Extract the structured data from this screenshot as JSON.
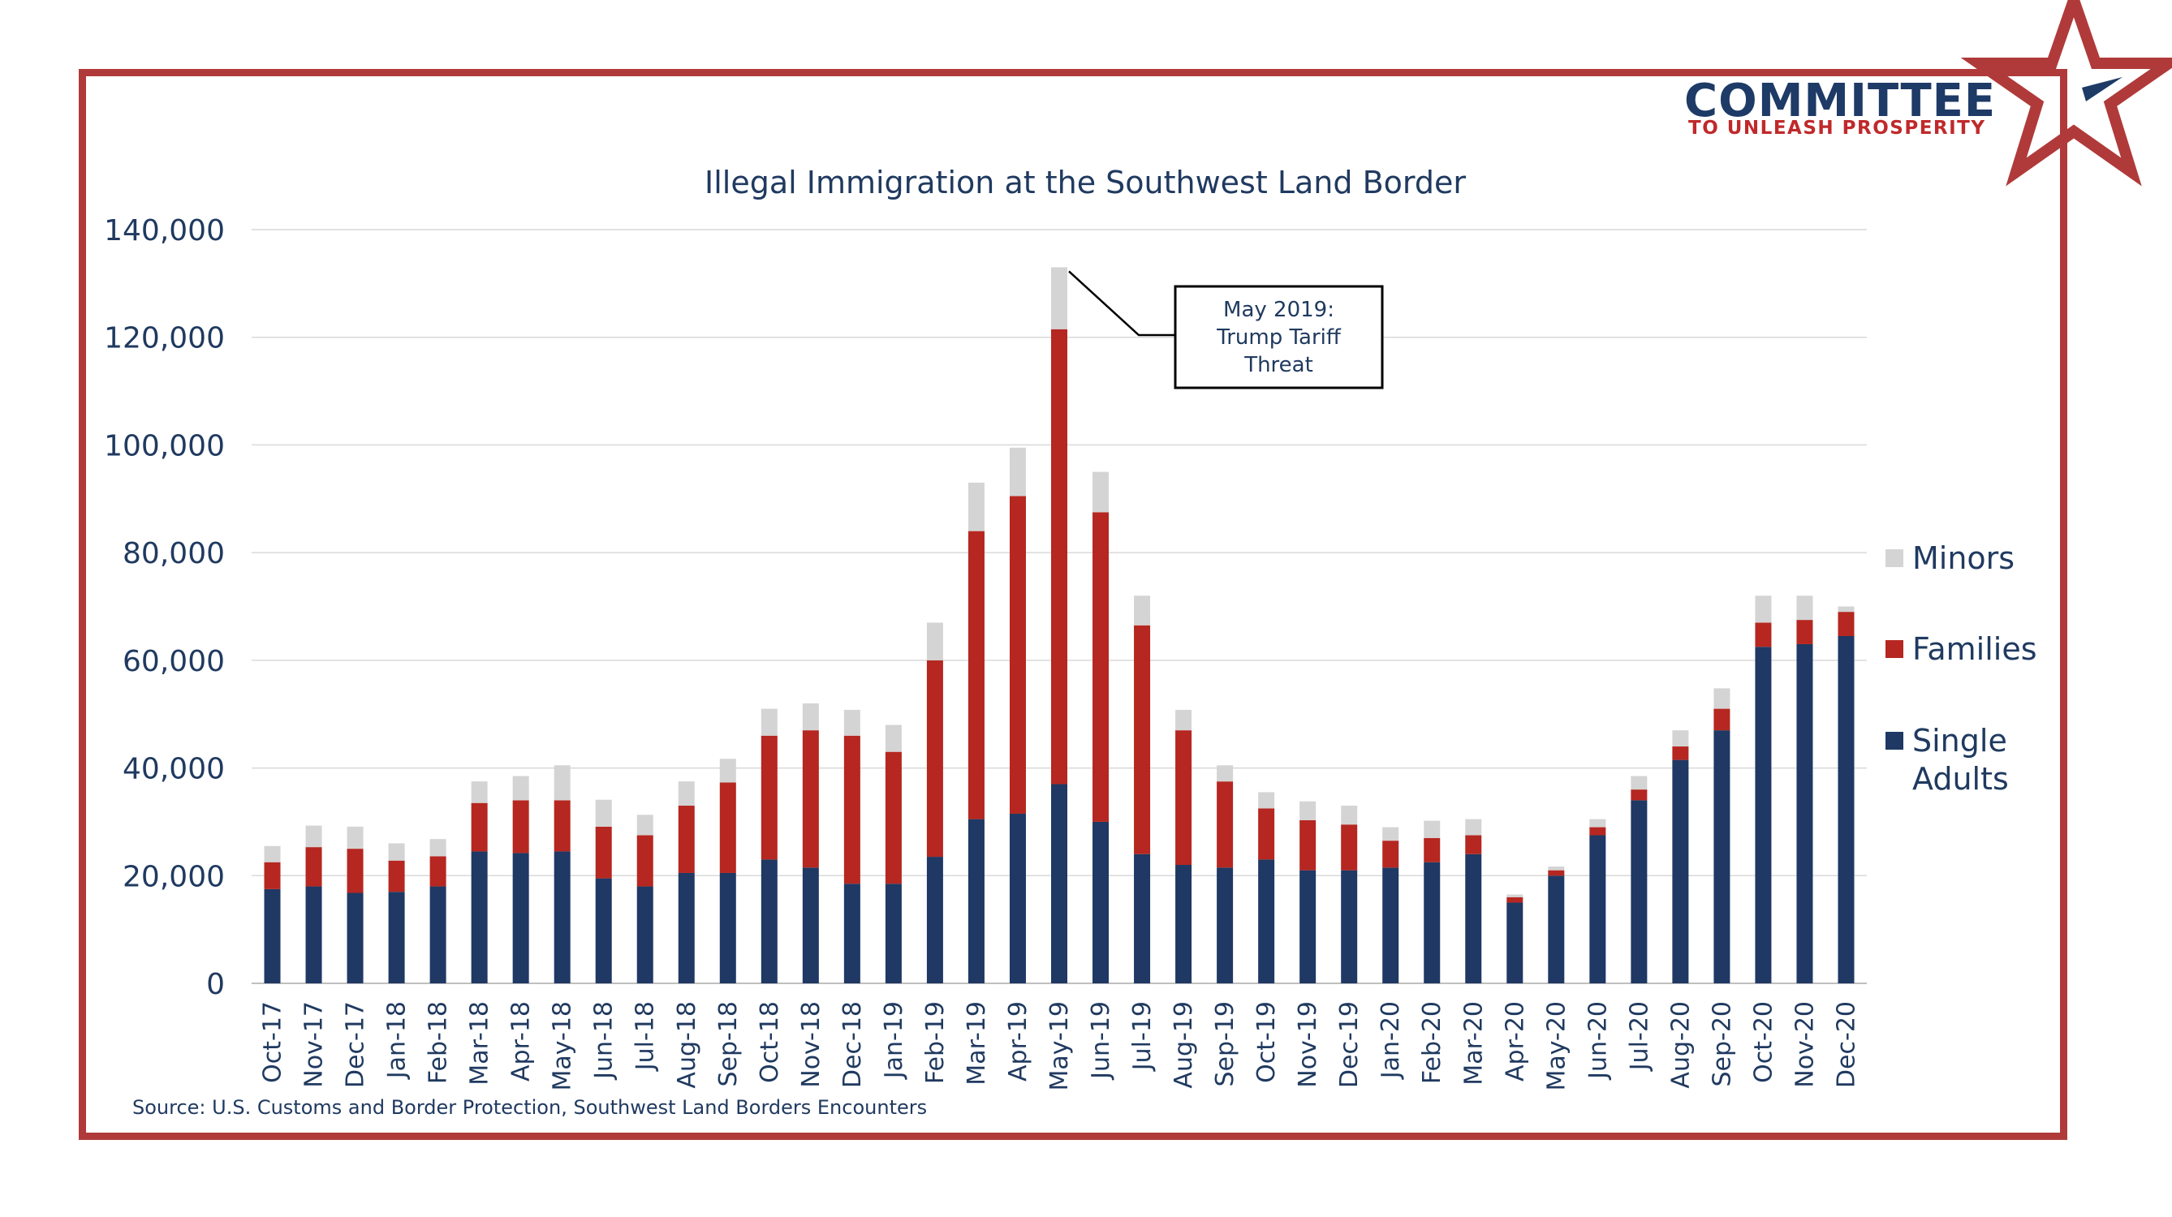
{
  "logo": {
    "name": "COMMITTEE",
    "tagline": "TO UNLEASH PROSPERITY"
  },
  "source": "Source: U.S. Customs and Border Protection, Southwest Land Borders Encounters",
  "colors": {
    "frame": "#b03a3a",
    "single_adults": "#1f3864",
    "families": "#b52720",
    "minors": "#d4d4d4",
    "text": "#203a60"
  },
  "chart_data": {
    "type": "bar",
    "stacked": true,
    "title": "Illegal Immigration at the Southwest Land Border",
    "xlabel": "",
    "ylabel": "",
    "ylim": [
      0,
      140000
    ],
    "yticks": [
      0,
      20000,
      40000,
      60000,
      80000,
      100000,
      120000,
      140000
    ],
    "ytick_labels": [
      "0",
      "20,000",
      "40,000",
      "60,000",
      "80,000",
      "100,000",
      "120,000",
      "140,000"
    ],
    "grid": true,
    "legend_position": "right",
    "categories": [
      "Oct-17",
      "Nov-17",
      "Dec-17",
      "Jan-18",
      "Feb-18",
      "Mar-18",
      "Apr-18",
      "May-18",
      "Jun-18",
      "Jul-18",
      "Aug-18",
      "Sep-18",
      "Oct-18",
      "Nov-18",
      "Dec-18",
      "Jan-19",
      "Feb-19",
      "Mar-19",
      "Apr-19",
      "May-19",
      "Jun-19",
      "Jul-19",
      "Aug-19",
      "Sep-19",
      "Oct-19",
      "Nov-19",
      "Dec-19",
      "Jan-20",
      "Feb-20",
      "Mar-20",
      "Apr-20",
      "May-20",
      "Jun-20",
      "Jul-20",
      "Aug-20",
      "Sep-20",
      "Oct-20",
      "Nov-20",
      "Dec-20"
    ],
    "series": [
      {
        "name": "Single Adults",
        "color": "#1f3864",
        "values": [
          17500,
          18000,
          16800,
          17000,
          18000,
          24500,
          24200,
          24500,
          19500,
          18000,
          20500,
          20500,
          23000,
          21500,
          18500,
          18500,
          23500,
          30500,
          31500,
          37000,
          30000,
          24000,
          22000,
          21500,
          23000,
          21000,
          21000,
          21500,
          22500,
          24000,
          15000,
          20000,
          27500,
          34000,
          41500,
          47000,
          62500,
          63000,
          64500
        ]
      },
      {
        "name": "Families",
        "color": "#b52720",
        "values": [
          5000,
          7300,
          8200,
          5800,
          5600,
          9000,
          9800,
          9500,
          9600,
          9500,
          12500,
          16800,
          23000,
          25500,
          27500,
          24500,
          36500,
          53500,
          59000,
          84500,
          57500,
          42500,
          25000,
          16000,
          9500,
          9300,
          8500,
          5000,
          4500,
          3500,
          1000,
          1000,
          1500,
          2000,
          2500,
          4000,
          4500,
          4500,
          4500
        ]
      },
      {
        "name": "Minors",
        "color": "#d4d4d4",
        "values": [
          3000,
          4000,
          4100,
          3200,
          3200,
          4000,
          4500,
          6500,
          5000,
          3800,
          4500,
          4400,
          5000,
          5000,
          4800,
          5000,
          7000,
          9000,
          9000,
          11500,
          7500,
          5500,
          3800,
          3000,
          3000,
          3500,
          3500,
          2500,
          3200,
          3000,
          500,
          700,
          1500,
          2500,
          3000,
          3800,
          5000,
          4500,
          1000
        ]
      }
    ],
    "annotation": {
      "category": "May-19",
      "lines": [
        "May 2019:",
        "Trump Tariff",
        "Threat"
      ]
    }
  }
}
